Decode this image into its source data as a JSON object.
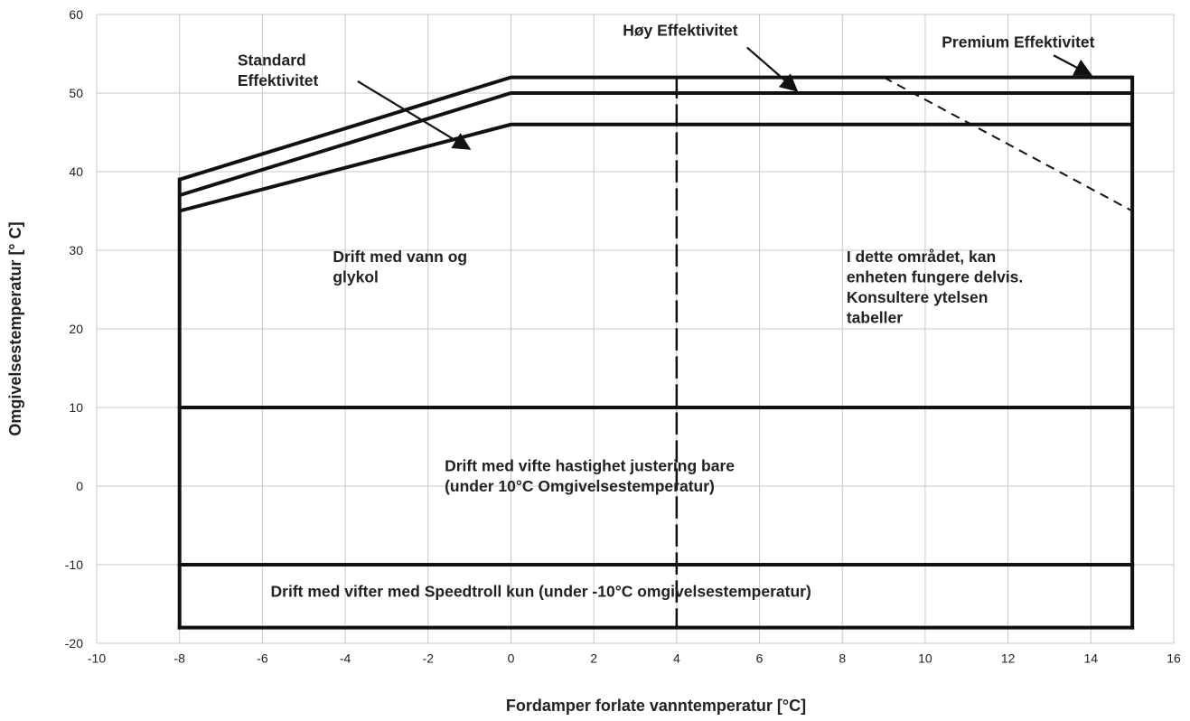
{
  "chart_data": {
    "type": "line",
    "xlabel": "Fordamper forlate vanntemperatur [°C]",
    "ylabel": "Omgivelsestemperatur [° C]",
    "xlim": [
      -10,
      16
    ],
    "ylim": [
      -20,
      60
    ],
    "x_ticks": [
      "-10",
      "-8",
      "-6",
      "-4",
      "-2",
      "0",
      "2",
      "4",
      "6",
      "8",
      "10",
      "12",
      "14",
      "16"
    ],
    "y_ticks": [
      "60",
      "50",
      "40",
      "30",
      "20",
      "10",
      "0",
      "-10",
      "-20"
    ],
    "grid": true,
    "series": [
      {
        "name": "Premium Effektivitet",
        "style": "solid",
        "x": [
          -8,
          0,
          15
        ],
        "y": [
          39,
          52,
          52
        ]
      },
      {
        "name": "Høy Effektivitet",
        "style": "solid",
        "x": [
          -8,
          0,
          15
        ],
        "y": [
          37,
          50,
          50
        ]
      },
      {
        "name": "Standard Effektivitet",
        "style": "solid",
        "x": [
          -8,
          0,
          15
        ],
        "y": [
          35,
          46,
          46
        ]
      },
      {
        "name": "",
        "style": "dashed",
        "x": [
          9,
          15
        ],
        "y": [
          52,
          35
        ]
      }
    ],
    "boundaries": [
      {
        "style": "solid",
        "x": [
          -8,
          -8
        ],
        "y": [
          39,
          -18
        ]
      },
      {
        "style": "solid",
        "x": [
          15,
          15
        ],
        "y": [
          52,
          -18
        ]
      },
      {
        "style": "solid",
        "x": [
          -8,
          15
        ],
        "y": [
          -18,
          -18
        ]
      },
      {
        "style": "solid",
        "x": [
          -8,
          15
        ],
        "y": [
          10,
          10
        ]
      },
      {
        "style": "solid",
        "x": [
          -8,
          15
        ],
        "y": [
          -10,
          -10
        ]
      },
      {
        "style": "longdash",
        "x": [
          4,
          4
        ],
        "y": [
          52,
          -18
        ]
      }
    ],
    "annotations": [
      {
        "id": "label-standard",
        "lines": [
          "Standard",
          "Effektivitet"
        ],
        "text_at": [
          -6.6,
          53.5
        ],
        "arrow_from": [
          -3.7,
          51.5
        ],
        "arrow_to": [
          -1.0,
          42.9
        ]
      },
      {
        "id": "label-hoy",
        "lines": [
          "Høy Effektivitet"
        ],
        "text_at": [
          2.7,
          57.3
        ],
        "arrow_from": [
          5.7,
          55.8
        ],
        "arrow_to": [
          6.9,
          50.3
        ]
      },
      {
        "id": "label-premium",
        "lines": [
          "Premium Effektivitet"
        ],
        "text_at": [
          10.4,
          55.8
        ],
        "arrow_from": [
          13.1,
          54.8
        ],
        "arrow_to": [
          14.0,
          52.3
        ]
      },
      {
        "id": "region-water-glycol",
        "lines": [
          "Drift med vann og",
          "glykol"
        ],
        "text_at": [
          -4.3,
          28.5
        ]
      },
      {
        "id": "region-partial",
        "lines": [
          "I dette området, kan",
          "enheten fungere delvis.",
          "Konsultere ytelsen",
          "tabeller"
        ],
        "text_at": [
          8.1,
          28.5
        ]
      },
      {
        "id": "region-fan-speed",
        "lines": [
          "Drift med vifte hastighet justering bare",
          "(under 10°C Omgivelsestemperatur)"
        ],
        "text_at": [
          -1.6,
          1.9
        ]
      },
      {
        "id": "region-speedtroll",
        "lines": [
          "Drift med vifter med Speedtroll kun (under -10°C omgivelsestemperatur)"
        ],
        "text_at": [
          -5.8,
          -14.1
        ]
      }
    ]
  }
}
